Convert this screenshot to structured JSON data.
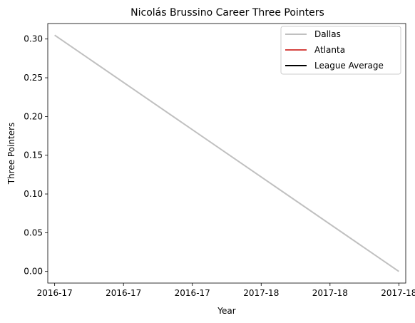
{
  "chart_data": {
    "type": "line",
    "title": "Nicolás Brussino Career Three Pointers",
    "xlabel": "Year",
    "ylabel": "Three Pointers",
    "x_tick_labels": [
      "2016-17",
      "2016-17",
      "2016-17",
      "2017-18",
      "2017-18",
      "2017-18"
    ],
    "x_range": [
      -0.1,
      5.1
    ],
    "x": [
      0,
      5
    ],
    "ylim": [
      -0.015,
      0.32
    ],
    "y_ticks": [
      0.0,
      0.05,
      0.1,
      0.15,
      0.2,
      0.25,
      0.3
    ],
    "y_tick_labels": [
      "0.00",
      "0.05",
      "0.10",
      "0.15",
      "0.20",
      "0.25",
      "0.30"
    ],
    "series": [
      {
        "name": "Dallas",
        "color": "#c0c0c0",
        "x": [
          0,
          5
        ],
        "values": [
          0.305,
          0.0
        ]
      },
      {
        "name": "Atlanta",
        "color": "#d64541",
        "x": [],
        "values": []
      },
      {
        "name": "League Average",
        "color": "#000000",
        "x": [],
        "values": []
      }
    ],
    "grid": false,
    "legend_position": "top-right"
  }
}
